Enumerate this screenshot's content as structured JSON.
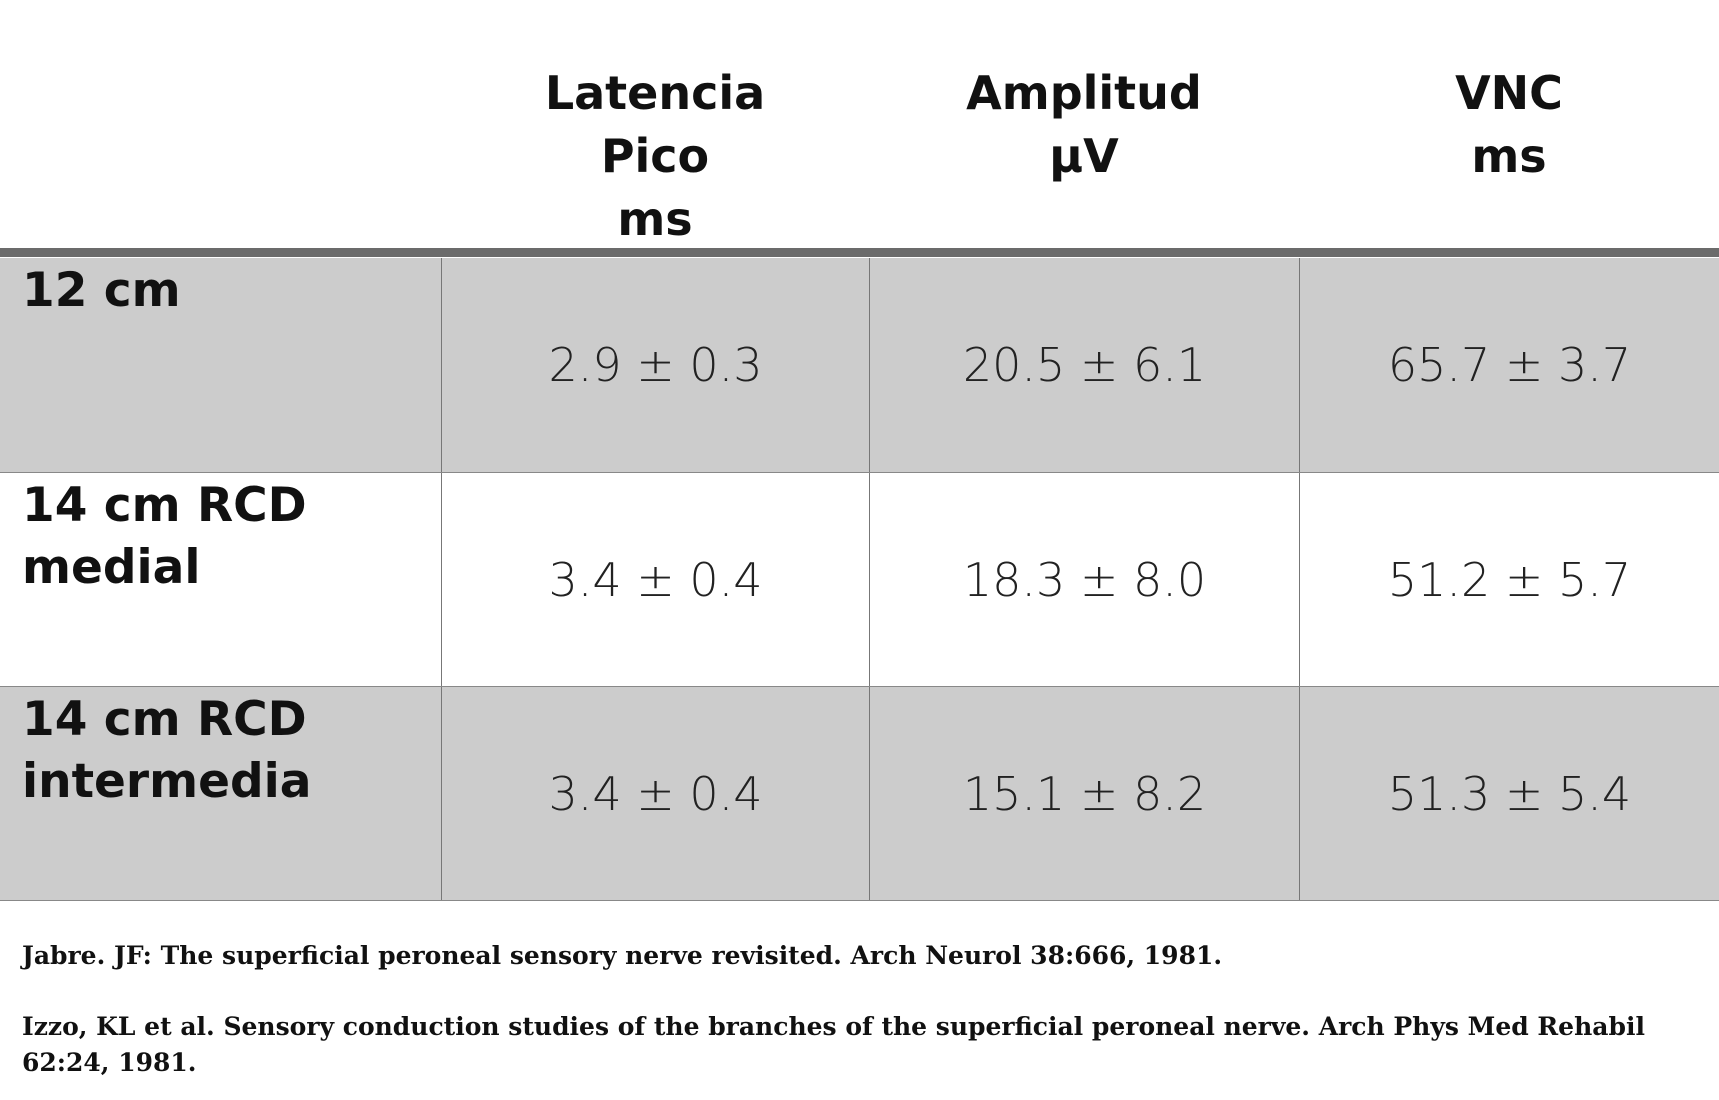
{
  "table": {
    "header": [
      [
        "Latencia",
        "Pico",
        "ms"
      ],
      [
        "Amplitud",
        "µV"
      ],
      [
        "VNC",
        "ms"
      ]
    ],
    "rows": [
      {
        "label": [
          "12 cm"
        ],
        "values": [
          "2.9 ± 0.3",
          "20.5 ± 6.1",
          "65.7 ± 3.7"
        ]
      },
      {
        "label": [
          "14 cm RCD",
          "medial"
        ],
        "values": [
          "3.4 ± 0.4",
          "18.3 ± 8.0",
          "51.2 ± 5.7"
        ]
      },
      {
        "label": [
          "14 cm RCD",
          "intermedia"
        ],
        "values": [
          "3.4 ± 0.4",
          "15.1 ± 8.2",
          "51.3 ± 5.4"
        ]
      }
    ]
  },
  "references": [
    "Jabre. JF: The superficial peroneal sensory nerve revisited. Arch Neurol 38:666, 1981.",
    "Izzo, KL et al. Sensory conduction studies of the branches of the superficial peroneal nerve. Arch Phys Med Rehabil 62:24, 1981."
  ]
}
